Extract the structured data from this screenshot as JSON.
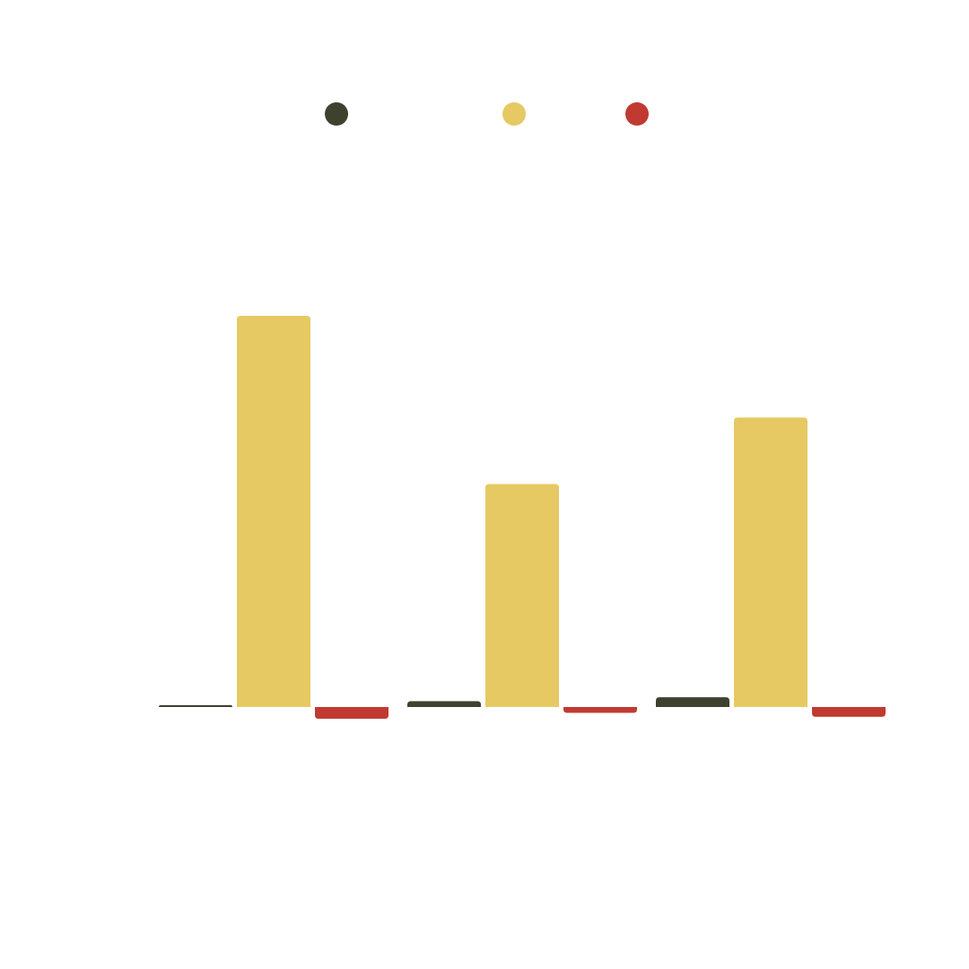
{
  "chart_data": {
    "type": "bar",
    "categories": [
      "",
      "",
      ""
    ],
    "series": [
      {
        "values": [
          0.5,
          1.5,
          2.5
        ],
        "color": "#3f412f"
      },
      {
        "values": [
          100,
          57,
          74
        ],
        "color": "#e6c962"
      },
      {
        "values": [
          -3,
          -1.5,
          -2.5
        ],
        "color": "#c13a31"
      }
    ],
    "ylim": [
      -65,
      180
    ],
    "grid": false,
    "legend_position": "top-center"
  }
}
